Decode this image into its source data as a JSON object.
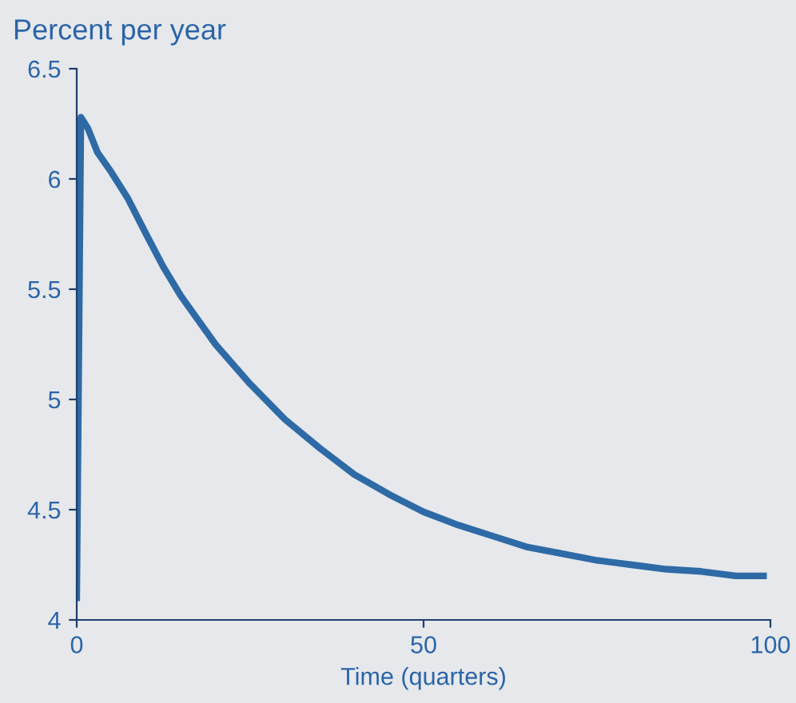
{
  "chart_data": {
    "type": "line",
    "ylabel": "Percent per year",
    "xlabel": "Time (quarters)",
    "series": [
      {
        "color": "#2e6aa6",
        "x": [
          0,
          0.6,
          1.6,
          3,
          5,
          7.4,
          10,
          12.5,
          15,
          17.5,
          20,
          25,
          30,
          35,
          40,
          45,
          50,
          55,
          60,
          65,
          70,
          75,
          80,
          85,
          90,
          95,
          99
        ],
        "values": [
          4.1,
          6.28,
          6.23,
          6.12,
          6.03,
          5.91,
          5.75,
          5.6,
          5.47,
          5.36,
          5.25,
          5.07,
          4.91,
          4.78,
          4.66,
          4.57,
          4.49,
          4.43,
          4.38,
          4.33,
          4.3,
          4.27,
          4.25,
          4.23,
          4.22,
          4.2,
          4.2
        ]
      }
    ],
    "xlim": [
      0,
      100
    ],
    "xticks": [
      0,
      50,
      100
    ],
    "ylim": [
      4,
      6.5
    ],
    "yticks": [
      4,
      4.5,
      5,
      5.5,
      6,
      6.5
    ],
    "grid": false,
    "line_style": "solid"
  }
}
